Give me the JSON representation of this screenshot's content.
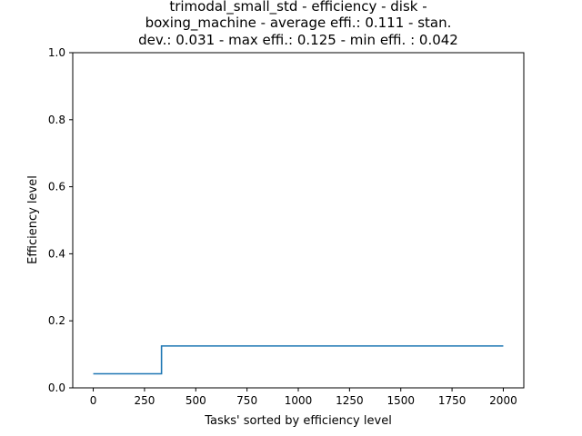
{
  "chart_data": {
    "type": "line",
    "title_lines": [
      "trimodal_small_std - efficiency - disk -",
      "boxing_machine - average effi.: 0.111 - stan.",
      "dev.: 0.031 - max effi.: 0.125 - min effi. : 0.042"
    ],
    "xlabel": "Tasks' sorted by efficiency level",
    "ylabel": "Efficiency level",
    "xlim": [
      -100,
      2100
    ],
    "ylim": [
      0.0,
      1.0
    ],
    "xticks": [
      0,
      250,
      500,
      750,
      1000,
      1250,
      1500,
      1750,
      2000
    ],
    "xtick_labels": [
      "0",
      "250",
      "500",
      "750",
      "1000",
      "1250",
      "1500",
      "1750",
      "2000"
    ],
    "yticks": [
      0.0,
      0.2,
      0.4,
      0.6,
      0.8,
      1.0
    ],
    "ytick_labels": [
      "0.0",
      "0.2",
      "0.4",
      "0.6",
      "0.8",
      "1.0"
    ],
    "grid": false,
    "series": [
      {
        "color": "#1f77b4",
        "x": [
          0,
          333,
          333,
          2000
        ],
        "y": [
          0.042,
          0.042,
          0.125,
          0.125
        ]
      }
    ]
  }
}
